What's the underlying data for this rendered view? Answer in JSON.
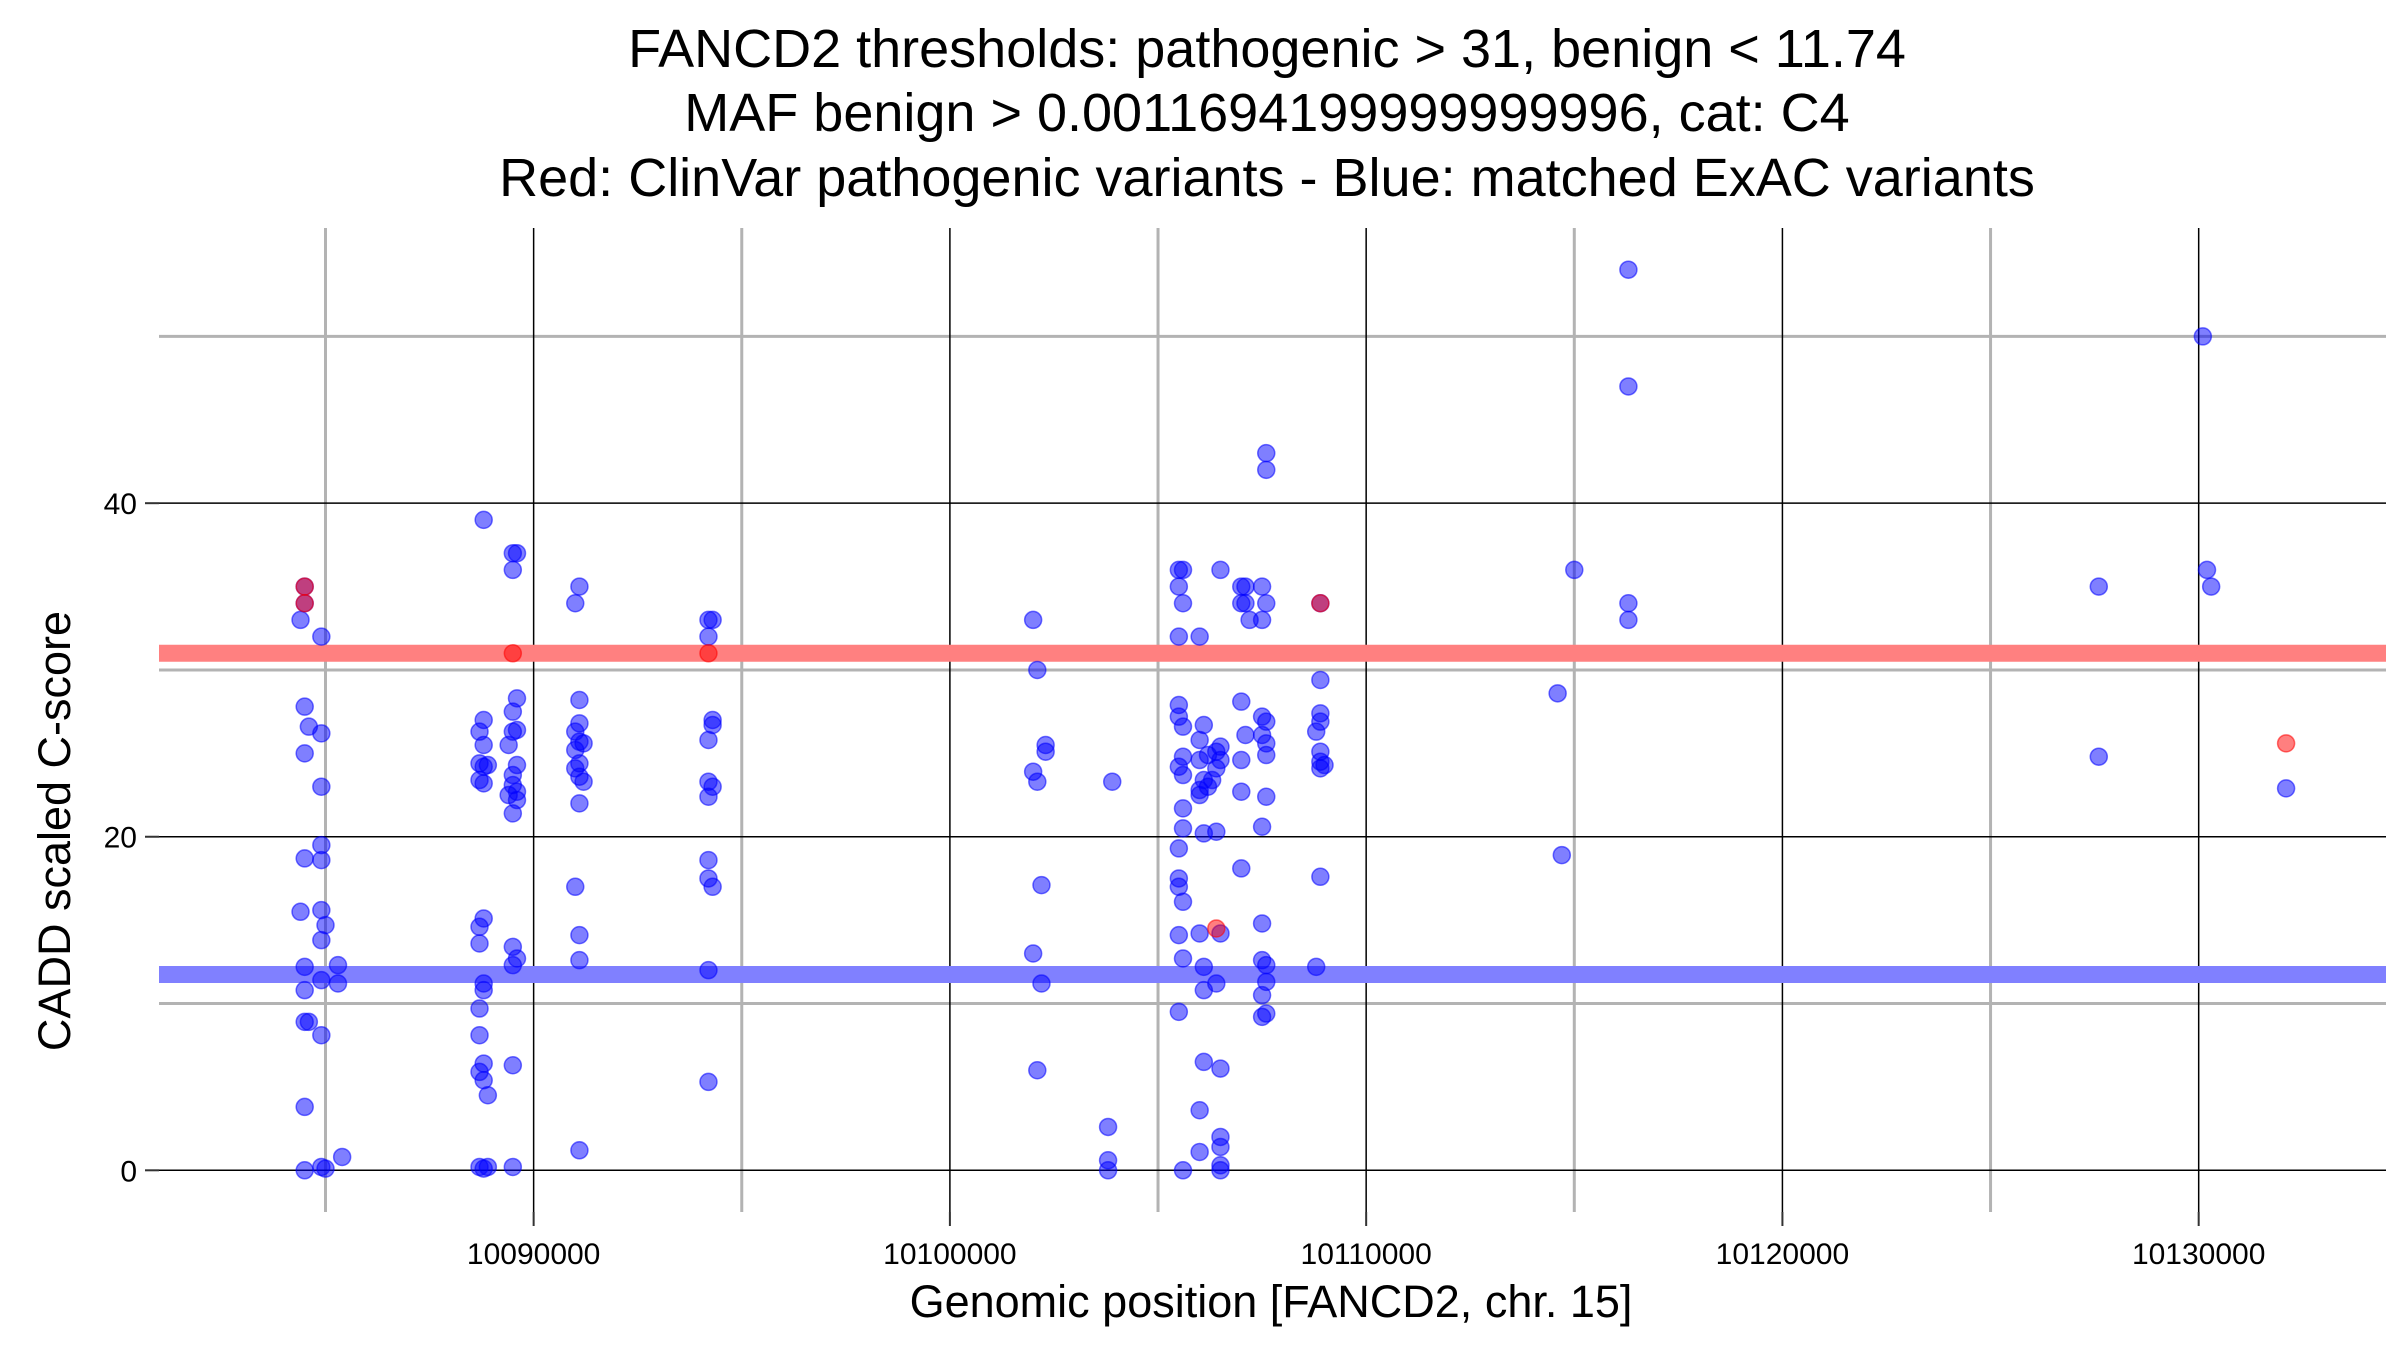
{
  "chart_data": {
    "type": "scatter",
    "title_lines": [
      "FANCD2 thresholds: pathogenic > 31, benign < 11.74",
      "MAF benign > 0.0011694199999999996, cat: C4",
      "Red: ClinVar pathogenic variants - Blue: matched ExAC variants"
    ],
    "xlabel": "Genomic position [FANCD2, chr. 15]",
    "ylabel": "CADD scaled C-score",
    "xlim": [
      10081000,
      10134500
    ],
    "ylim": [
      -2.5,
      56.5
    ],
    "x_major_ticks": [
      10090000,
      10100000,
      10110000,
      10120000,
      10130000
    ],
    "x_minor_grid": [
      10085000,
      10095000,
      10105000,
      10115000,
      10125000
    ],
    "y_major_ticks": [
      0,
      20,
      40
    ],
    "y_minor_grid": [
      10,
      30,
      50
    ],
    "x_tick_labels": [
      "10090000",
      "10100000",
      "10110000",
      "10120000",
      "10130000"
    ],
    "y_tick_labels": [
      "0",
      "20",
      "40"
    ],
    "grid": true,
    "thresholds": [
      {
        "name": "pathogenic",
        "value": 31,
        "color": "#ff8080"
      },
      {
        "name": "benign",
        "value": 11.74,
        "color": "#8080ff"
      }
    ],
    "colors": {
      "pathogenic": "#ff0000",
      "exac": "#0000ff",
      "major_grid": "#000000",
      "minor_grid": "#b3b3b3"
    },
    "series": [
      {
        "key": "clinvar",
        "points": [
          [
            10084500,
            35
          ],
          [
            10084500,
            34
          ],
          [
            10089500,
            31
          ],
          [
            10094200,
            31
          ],
          [
            10106400,
            14.5
          ],
          [
            10108900,
            34
          ],
          [
            10132100,
            25.6
          ]
        ]
      },
      {
        "key": "exac",
        "points": [
          [
            10084400,
            33
          ],
          [
            10084500,
            34
          ],
          [
            10084500,
            35
          ],
          [
            10084500,
            27.8
          ],
          [
            10084600,
            26.6
          ],
          [
            10084500,
            25
          ],
          [
            10084500,
            18.7
          ],
          [
            10084400,
            15.5
          ],
          [
            10084500,
            12.2
          ],
          [
            10084500,
            10.8
          ],
          [
            10084500,
            8.9
          ],
          [
            10084600,
            8.9
          ],
          [
            10084500,
            3.8
          ],
          [
            10084500,
            0
          ],
          [
            10084900,
            32
          ],
          [
            10084900,
            26.2
          ],
          [
            10084900,
            23
          ],
          [
            10084900,
            19.5
          ],
          [
            10084900,
            18.6
          ],
          [
            10084900,
            15.6
          ],
          [
            10085000,
            14.7
          ],
          [
            10084900,
            13.8
          ],
          [
            10084900,
            11.4
          ],
          [
            10084900,
            8.1
          ],
          [
            10084900,
            0.2
          ],
          [
            10085000,
            0.1
          ],
          [
            10085300,
            12.3
          ],
          [
            10085300,
            11.2
          ],
          [
            10085400,
            0.8
          ],
          [
            10088800,
            39
          ],
          [
            10088700,
            26.3
          ],
          [
            10088800,
            27
          ],
          [
            10088800,
            25.5
          ],
          [
            10088700,
            24.4
          ],
          [
            10088800,
            24.2
          ],
          [
            10088900,
            24.3
          ],
          [
            10088700,
            23.4
          ],
          [
            10088800,
            23.2
          ],
          [
            10088800,
            15.1
          ],
          [
            10088700,
            14.6
          ],
          [
            10088700,
            13.6
          ],
          [
            10088800,
            11.2
          ],
          [
            10088800,
            10.8
          ],
          [
            10088700,
            9.7
          ],
          [
            10088700,
            8.1
          ],
          [
            10088800,
            6.4
          ],
          [
            10088700,
            5.9
          ],
          [
            10088800,
            5.4
          ],
          [
            10088900,
            4.5
          ],
          [
            10088700,
            0.2
          ],
          [
            10088800,
            0.1
          ],
          [
            10088900,
            0.2
          ],
          [
            10089500,
            37
          ],
          [
            10089600,
            37
          ],
          [
            10089500,
            36
          ],
          [
            10089600,
            28.3
          ],
          [
            10089500,
            27.5
          ],
          [
            10089500,
            26.3
          ],
          [
            10089600,
            26.4
          ],
          [
            10089400,
            25.5
          ],
          [
            10089600,
            24.3
          ],
          [
            10089500,
            23.7
          ],
          [
            10089500,
            23.1
          ],
          [
            10089600,
            22.7
          ],
          [
            10089400,
            22.5
          ],
          [
            10089600,
            22.2
          ],
          [
            10089500,
            21.4
          ],
          [
            10089500,
            13.4
          ],
          [
            10089600,
            12.7
          ],
          [
            10089500,
            12.3
          ],
          [
            10089500,
            6.3
          ],
          [
            10089500,
            0.2
          ],
          [
            10091100,
            35
          ],
          [
            10091000,
            34
          ],
          [
            10091100,
            28.2
          ],
          [
            10091100,
            26.8
          ],
          [
            10091000,
            26.3
          ],
          [
            10091100,
            25.7
          ],
          [
            10091000,
            25.2
          ],
          [
            10091200,
            25.6
          ],
          [
            10091100,
            24.4
          ],
          [
            10091000,
            24.1
          ],
          [
            10091100,
            23.6
          ],
          [
            10091200,
            23.3
          ],
          [
            10091100,
            22
          ],
          [
            10091000,
            17
          ],
          [
            10091100,
            14.1
          ],
          [
            10091100,
            12.6
          ],
          [
            10091100,
            1.2
          ],
          [
            10094200,
            33
          ],
          [
            10094300,
            33
          ],
          [
            10094200,
            32
          ],
          [
            10094300,
            27
          ],
          [
            10094300,
            26.7
          ],
          [
            10094200,
            25.8
          ],
          [
            10094200,
            23.3
          ],
          [
            10094300,
            23
          ],
          [
            10094200,
            22.4
          ],
          [
            10094200,
            18.6
          ],
          [
            10094200,
            17.5
          ],
          [
            10094300,
            17
          ],
          [
            10094200,
            12
          ],
          [
            10094200,
            5.3
          ],
          [
            10102000,
            33
          ],
          [
            10102100,
            30
          ],
          [
            10102300,
            25.5
          ],
          [
            10102300,
            25.1
          ],
          [
            10102000,
            23.9
          ],
          [
            10102100,
            23.3
          ],
          [
            10102200,
            17.1
          ],
          [
            10102000,
            13
          ],
          [
            10102200,
            11.2
          ],
          [
            10102100,
            6
          ],
          [
            10103900,
            23.3
          ],
          [
            10103800,
            2.6
          ],
          [
            10103800,
            0.6
          ],
          [
            10103800,
            0
          ],
          [
            10105500,
            36
          ],
          [
            10105600,
            36
          ],
          [
            10105500,
            35
          ],
          [
            10105600,
            34
          ],
          [
            10105500,
            32
          ],
          [
            10105500,
            27.9
          ],
          [
            10105500,
            27.2
          ],
          [
            10105600,
            26.6
          ],
          [
            10105600,
            24.8
          ],
          [
            10105500,
            24.2
          ],
          [
            10105600,
            23.7
          ],
          [
            10105600,
            21.7
          ],
          [
            10105600,
            20.5
          ],
          [
            10105500,
            19.3
          ],
          [
            10105500,
            17.5
          ],
          [
            10105500,
            17
          ],
          [
            10105600,
            16.1
          ],
          [
            10105500,
            14.1
          ],
          [
            10105600,
            12.7
          ],
          [
            10105500,
            9.5
          ],
          [
            10105600,
            0
          ],
          [
            10106000,
            32
          ],
          [
            10106100,
            26.7
          ],
          [
            10106000,
            25.8
          ],
          [
            10106200,
            24.9
          ],
          [
            10106000,
            24.6
          ],
          [
            10106100,
            23.4
          ],
          [
            10106200,
            23
          ],
          [
            10106000,
            22.8
          ],
          [
            10106000,
            22.5
          ],
          [
            10106100,
            20.2
          ],
          [
            10106000,
            14.2
          ],
          [
            10106100,
            12.2
          ],
          [
            10106100,
            10.8
          ],
          [
            10106100,
            6.5
          ],
          [
            10106000,
            3.6
          ],
          [
            10106000,
            1.1
          ],
          [
            10106500,
            36
          ],
          [
            10106500,
            25.4
          ],
          [
            10106400,
            25.1
          ],
          [
            10106500,
            24.6
          ],
          [
            10106400,
            24.1
          ],
          [
            10106300,
            23.4
          ],
          [
            10106400,
            20.3
          ],
          [
            10106500,
            14.2
          ],
          [
            10106400,
            11.2
          ],
          [
            10106500,
            6.1
          ],
          [
            10106500,
            2
          ],
          [
            10106500,
            1.4
          ],
          [
            10106500,
            0.3
          ],
          [
            10106500,
            0
          ],
          [
            10107000,
            35
          ],
          [
            10107100,
            35
          ],
          [
            10107000,
            34
          ],
          [
            10107100,
            34
          ],
          [
            10107200,
            33
          ],
          [
            10107000,
            28.1
          ],
          [
            10107100,
            26.1
          ],
          [
            10107000,
            24.6
          ],
          [
            10107000,
            22.7
          ],
          [
            10107000,
            18.1
          ],
          [
            10107600,
            43
          ],
          [
            10107600,
            42
          ],
          [
            10107500,
            35
          ],
          [
            10107600,
            34
          ],
          [
            10107500,
            33
          ],
          [
            10107500,
            27.2
          ],
          [
            10107600,
            26.9
          ],
          [
            10107500,
            26.1
          ],
          [
            10107600,
            25.6
          ],
          [
            10107600,
            24.9
          ],
          [
            10107600,
            22.4
          ],
          [
            10107500,
            20.6
          ],
          [
            10107500,
            14.8
          ],
          [
            10107500,
            12.6
          ],
          [
            10107600,
            12.3
          ],
          [
            10107600,
            11.3
          ],
          [
            10107500,
            10.5
          ],
          [
            10107600,
            9.4
          ],
          [
            10107500,
            9.2
          ],
          [
            10108900,
            34
          ],
          [
            10108900,
            29.4
          ],
          [
            10108900,
            27.4
          ],
          [
            10108900,
            26.9
          ],
          [
            10108800,
            26.3
          ],
          [
            10108900,
            25.1
          ],
          [
            10108900,
            24.5
          ],
          [
            10109000,
            24.3
          ],
          [
            10108900,
            24.1
          ],
          [
            10108900,
            17.6
          ],
          [
            10108800,
            12.2
          ],
          [
            10114600,
            28.6
          ],
          [
            10114700,
            18.9
          ],
          [
            10115000,
            36
          ],
          [
            10116300,
            54
          ],
          [
            10116300,
            47
          ],
          [
            10116300,
            34
          ],
          [
            10116300,
            33
          ],
          [
            10127600,
            35
          ],
          [
            10127600,
            24.8
          ],
          [
            10130100,
            50
          ],
          [
            10130200,
            36
          ],
          [
            10130300,
            35
          ],
          [
            10132100,
            22.9
          ]
        ]
      }
    ]
  }
}
